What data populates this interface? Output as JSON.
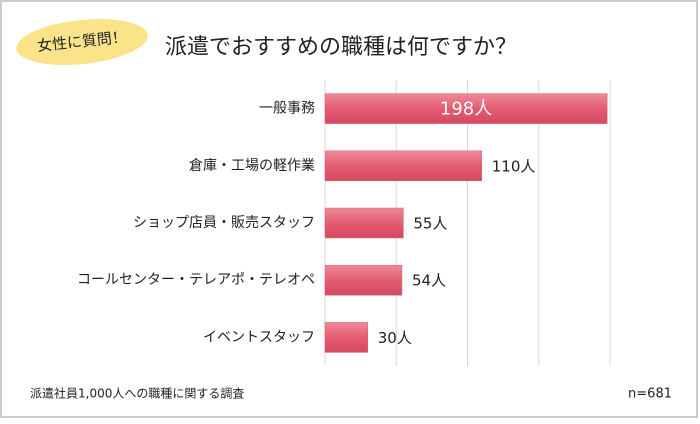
{
  "chart_data": {
    "type": "barh",
    "badge": "女性に質問！",
    "title": "派遣でおすすめの職種は何ですか？",
    "categories": [
      "一般事務",
      "倉庫・工場の軽作業",
      "ショップ店員・販売スタッフ",
      "コールセンター・テレアポ・テレオペ",
      "イベントスタッフ"
    ],
    "values": [
      198,
      110,
      55,
      54,
      30
    ],
    "value_labels": [
      "198人",
      "110人",
      "55人",
      "54人",
      "30人"
    ],
    "color": "#e35d72",
    "xlim": [
      0,
      200
    ],
    "xticks": [
      0,
      50,
      100,
      150,
      200
    ],
    "grid": true,
    "footnote": "派遣社員1,000人への職種に関する調査",
    "sample": "n=681"
  }
}
